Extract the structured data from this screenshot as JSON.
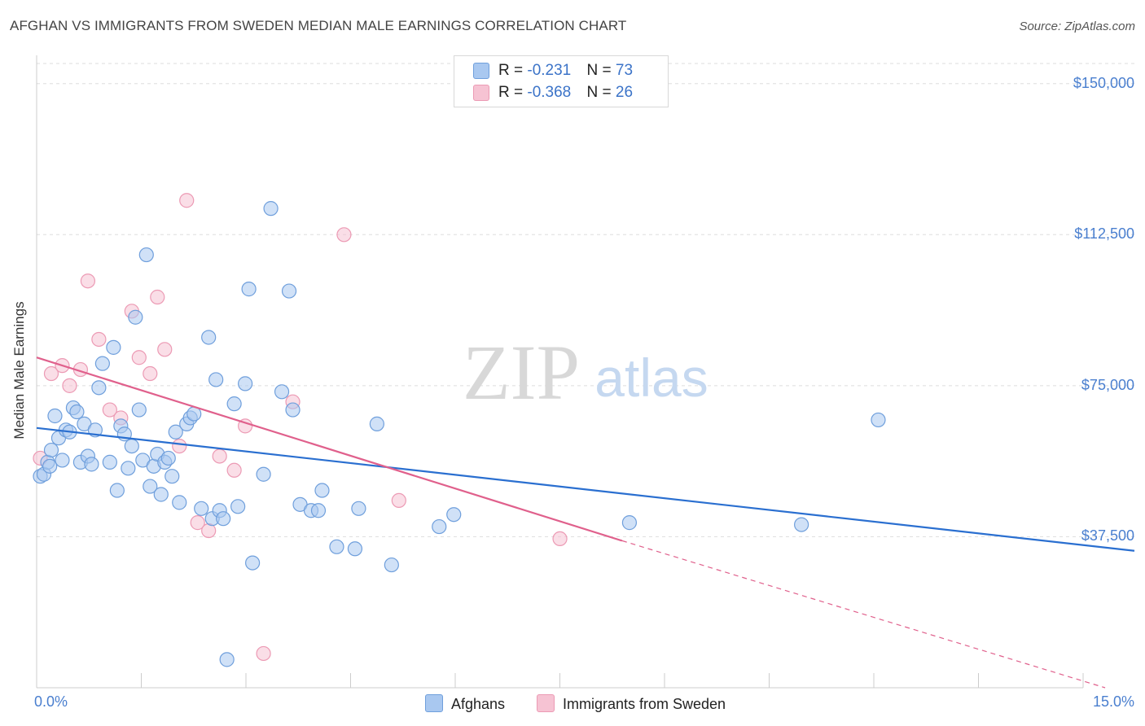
{
  "title": "AFGHAN VS IMMIGRANTS FROM SWEDEN MEDIAN MALE EARNINGS CORRELATION CHART",
  "source": "Source: ZipAtlas.com",
  "watermark": {
    "zip": "ZIP",
    "atlas": "atlas"
  },
  "legend": {
    "rows": [
      {
        "r_label": "R = ",
        "r_value": "-0.231",
        "n_label": "N = ",
        "n_value": "73"
      },
      {
        "r_label": "R = ",
        "r_value": "-0.368",
        "n_label": "N = ",
        "n_value": "26"
      }
    ]
  },
  "bottom_legend": {
    "afghans": "Afghans",
    "sweden": "Immigrants from Sweden"
  },
  "colors": {
    "blue_fill": "#a9c8f0",
    "blue_stroke": "#6f9fdc",
    "blue_line": "#2a6fd0",
    "pink_fill": "#f6c3d3",
    "pink_stroke": "#ec9ab4",
    "pink_line": "#e0608c",
    "axis_text": "#4a7fcf",
    "grid": "#dddddd"
  },
  "chart_data": {
    "type": "scatter",
    "title": "AFGHAN VS IMMIGRANTS FROM SWEDEN MEDIAN MALE EARNINGS CORRELATION CHART",
    "xlabel": "",
    "ylabel": "Median Male Earnings",
    "xlim": [
      0,
      15
    ],
    "ylim": [
      0,
      155000
    ],
    "x_tick_labels": [
      "0.0%",
      "15.0%"
    ],
    "y_ticks": [
      {
        "value": 150000,
        "label": "$150,000"
      },
      {
        "value": 112500,
        "label": "$112,500"
      },
      {
        "value": 75000,
        "label": "$75,000"
      },
      {
        "value": 37500,
        "label": "$37,500"
      }
    ],
    "series": [
      {
        "name": "Afghans",
        "color": "blue",
        "R": -0.231,
        "N": 73,
        "trend": {
          "x0": 0,
          "y0": 64500,
          "x1": 15,
          "y1": 34000
        },
        "points": [
          [
            0.05,
            52500
          ],
          [
            0.1,
            53000
          ],
          [
            0.15,
            56000
          ],
          [
            0.18,
            55000
          ],
          [
            0.25,
            67500
          ],
          [
            0.3,
            62000
          ],
          [
            0.35,
            56500
          ],
          [
            0.4,
            64000
          ],
          [
            0.45,
            63500
          ],
          [
            0.5,
            69500
          ],
          [
            0.55,
            68500
          ],
          [
            0.6,
            56000
          ],
          [
            0.65,
            65500
          ],
          [
            0.7,
            57500
          ],
          [
            0.75,
            55500
          ],
          [
            0.8,
            64000
          ],
          [
            0.85,
            74500
          ],
          [
            0.9,
            80500
          ],
          [
            1.0,
            56000
          ],
          [
            1.05,
            84500
          ],
          [
            1.1,
            49000
          ],
          [
            1.15,
            65000
          ],
          [
            1.2,
            63000
          ],
          [
            1.25,
            54500
          ],
          [
            1.3,
            60000
          ],
          [
            1.35,
            92000
          ],
          [
            1.4,
            69000
          ],
          [
            1.45,
            56500
          ],
          [
            1.5,
            107500
          ],
          [
            1.55,
            50000
          ],
          [
            1.6,
            55000
          ],
          [
            1.65,
            58000
          ],
          [
            1.7,
            48000
          ],
          [
            1.75,
            56000
          ],
          [
            1.8,
            57000
          ],
          [
            1.85,
            52500
          ],
          [
            1.9,
            63500
          ],
          [
            1.95,
            46000
          ],
          [
            2.05,
            65500
          ],
          [
            2.1,
            67000
          ],
          [
            2.15,
            68000
          ],
          [
            2.25,
            44500
          ],
          [
            2.35,
            87000
          ],
          [
            2.4,
            42000
          ],
          [
            2.45,
            76500
          ],
          [
            2.5,
            44000
          ],
          [
            2.55,
            42000
          ],
          [
            2.6,
            7000
          ],
          [
            2.7,
            70500
          ],
          [
            2.75,
            45000
          ],
          [
            2.85,
            75500
          ],
          [
            2.9,
            99000
          ],
          [
            2.95,
            31000
          ],
          [
            3.1,
            53000
          ],
          [
            3.2,
            119000
          ],
          [
            3.35,
            73500
          ],
          [
            3.45,
            98500
          ],
          [
            3.5,
            69000
          ],
          [
            3.6,
            45500
          ],
          [
            3.75,
            44000
          ],
          [
            3.85,
            44000
          ],
          [
            3.9,
            49000
          ],
          [
            4.1,
            35000
          ],
          [
            4.35,
            34500
          ],
          [
            4.4,
            44500
          ],
          [
            4.65,
            65500
          ],
          [
            4.85,
            30500
          ],
          [
            5.5,
            40000
          ],
          [
            5.7,
            43000
          ],
          [
            8.1,
            41000
          ],
          [
            10.45,
            40500
          ],
          [
            11.5,
            66500
          ],
          [
            0.2,
            59000
          ]
        ]
      },
      {
        "name": "Immigrants from Sweden",
        "color": "pink",
        "R": -0.368,
        "N": 26,
        "trend": {
          "x0": 0,
          "y0": 82000,
          "x1": 8.0,
          "y1": 36500
        },
        "trend_dashed": {
          "x0": 8.0,
          "y0": 36500,
          "x1": 14.6,
          "y1": 0
        },
        "points": [
          [
            0.05,
            57000
          ],
          [
            0.2,
            78000
          ],
          [
            0.35,
            80000
          ],
          [
            0.45,
            75000
          ],
          [
            0.6,
            79000
          ],
          [
            0.7,
            101000
          ],
          [
            0.85,
            86500
          ],
          [
            1.0,
            69000
          ],
          [
            1.15,
            67000
          ],
          [
            1.3,
            93500
          ],
          [
            1.4,
            82000
          ],
          [
            1.55,
            78000
          ],
          [
            1.65,
            97000
          ],
          [
            1.75,
            84000
          ],
          [
            1.95,
            60000
          ],
          [
            2.05,
            121000
          ],
          [
            2.2,
            41000
          ],
          [
            2.35,
            39000
          ],
          [
            2.5,
            57500
          ],
          [
            2.7,
            54000
          ],
          [
            2.85,
            65000
          ],
          [
            3.1,
            8500
          ],
          [
            3.5,
            71000
          ],
          [
            4.2,
            112500
          ],
          [
            4.95,
            46500
          ],
          [
            7.15,
            37000
          ]
        ]
      }
    ]
  }
}
